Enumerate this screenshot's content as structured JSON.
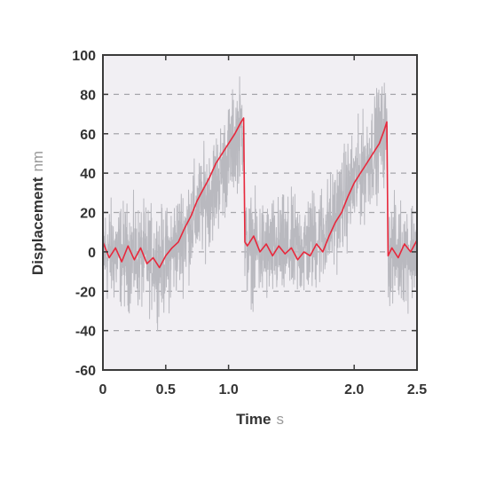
{
  "chart_data": {
    "type": "line",
    "xlabel": "Time",
    "xlabel_unit": "s",
    "ylabel": "Displacement",
    "ylabel_unit": "nm",
    "xlim": [
      0,
      2.5
    ],
    "ylim": [
      -60,
      100
    ],
    "x_ticks": [
      0,
      0.5,
      1.0,
      2.0,
      2.5
    ],
    "x_tick_labels": [
      "0",
      "0.5",
      "1.0",
      "2.0",
      "2.5"
    ],
    "y_ticks": [
      -60,
      -40,
      -20,
      0,
      20,
      40,
      60,
      80,
      100
    ],
    "y_tick_labels": [
      "-60",
      "-40",
      "-20",
      "0",
      "20",
      "40",
      "60",
      "80",
      "100"
    ],
    "grid": {
      "y": "dashed",
      "x": false
    },
    "legend": "none",
    "colors": {
      "raw": "#b9b9bf",
      "smoothed": "#e8283c",
      "plot_background": "#f1eff3",
      "frame": "#3a3a3a",
      "grid": "#a6a6ab"
    },
    "series": [
      {
        "style": "raw-noise",
        "noise_amplitude_nm": 22,
        "trend_x": [
          0,
          0.5,
          0.6,
          0.7,
          0.8,
          0.9,
          1.0,
          1.05,
          1.12,
          1.13,
          1.3,
          1.6,
          1.8,
          1.9,
          2.0,
          2.1,
          2.2,
          2.26,
          2.27,
          2.4,
          2.5
        ],
        "trend_y": [
          0,
          -5,
          5,
          15,
          25,
          35,
          48,
          58,
          65,
          2,
          0,
          2,
          12,
          25,
          35,
          45,
          58,
          62,
          0,
          0,
          2
        ]
      },
      {
        "style": "smoothed",
        "x": [
          0,
          0.05,
          0.1,
          0.15,
          0.2,
          0.25,
          0.3,
          0.35,
          0.4,
          0.45,
          0.5,
          0.55,
          0.6,
          0.65,
          0.7,
          0.75,
          0.8,
          0.85,
          0.9,
          0.95,
          1.0,
          1.05,
          1.1,
          1.12,
          1.13,
          1.15,
          1.2,
          1.25,
          1.3,
          1.35,
          1.4,
          1.45,
          1.5,
          1.55,
          1.6,
          1.65,
          1.7,
          1.75,
          1.8,
          1.85,
          1.9,
          1.95,
          2.0,
          2.05,
          2.1,
          2.15,
          2.2,
          2.24,
          2.26,
          2.27,
          2.3,
          2.35,
          2.4,
          2.45,
          2.5
        ],
        "y": [
          5,
          -3,
          2,
          -5,
          3,
          -4,
          2,
          -6,
          -3,
          -8,
          -2,
          2,
          5,
          12,
          18,
          26,
          32,
          38,
          45,
          50,
          55,
          60,
          66,
          68,
          5,
          3,
          8,
          0,
          4,
          -2,
          3,
          -1,
          2,
          -4,
          0,
          -2,
          4,
          0,
          8,
          15,
          20,
          28,
          35,
          40,
          45,
          50,
          55,
          62,
          66,
          -2,
          2,
          -3,
          4,
          0,
          6
        ]
      }
    ]
  }
}
